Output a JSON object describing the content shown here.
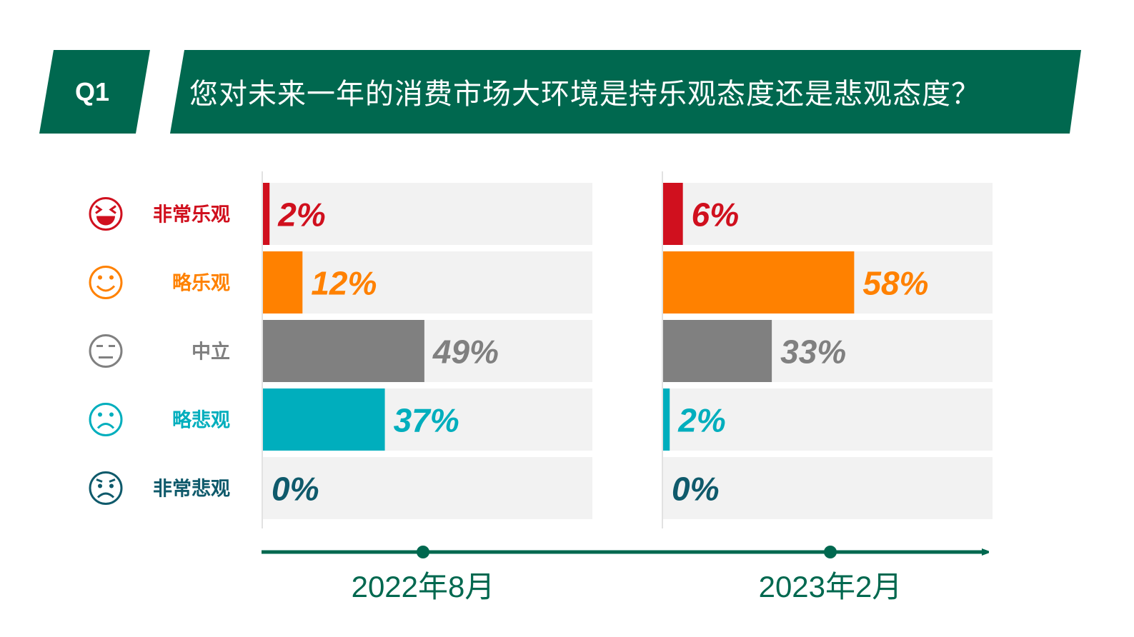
{
  "question": {
    "label": "Q1",
    "text": "您对未来一年的消费市场大环境是持乐观态度还是悲观态度？"
  },
  "colors": {
    "brand": "#00684F",
    "banner_divider": "#ffffff",
    "track": "#F2F2F2",
    "axis_line": "#D9D9D9"
  },
  "chart_data": {
    "type": "bar",
    "orientation": "horizontal",
    "categories": [
      "非常乐观",
      "略乐观",
      "中立",
      "略悲观",
      "非常悲观"
    ],
    "category_icons": [
      "laughing-face-icon",
      "smiling-face-icon",
      "neutral-face-icon",
      "sad-face-icon",
      "very-sad-face-icon"
    ],
    "category_colors": [
      "#D0101E",
      "#FF8100",
      "#808080",
      "#00AEBD",
      "#0F5A6B"
    ],
    "series": [
      {
        "name": "2022年8月",
        "values": [
          2,
          12,
          49,
          37,
          0
        ],
        "labels": [
          "2%",
          "12%",
          "49%",
          "37%",
          "0%"
        ]
      },
      {
        "name": "2023年2月",
        "values": [
          6,
          58,
          33,
          2,
          0
        ],
        "labels": [
          "6%",
          "58%",
          "33%",
          "2%",
          "0%"
        ]
      }
    ],
    "xlim": [
      0,
      100
    ],
    "unit": "%",
    "timeline": {
      "labels": [
        "2022年8月",
        "2023年2月"
      ],
      "color": "#00684F",
      "arrow": true
    }
  }
}
